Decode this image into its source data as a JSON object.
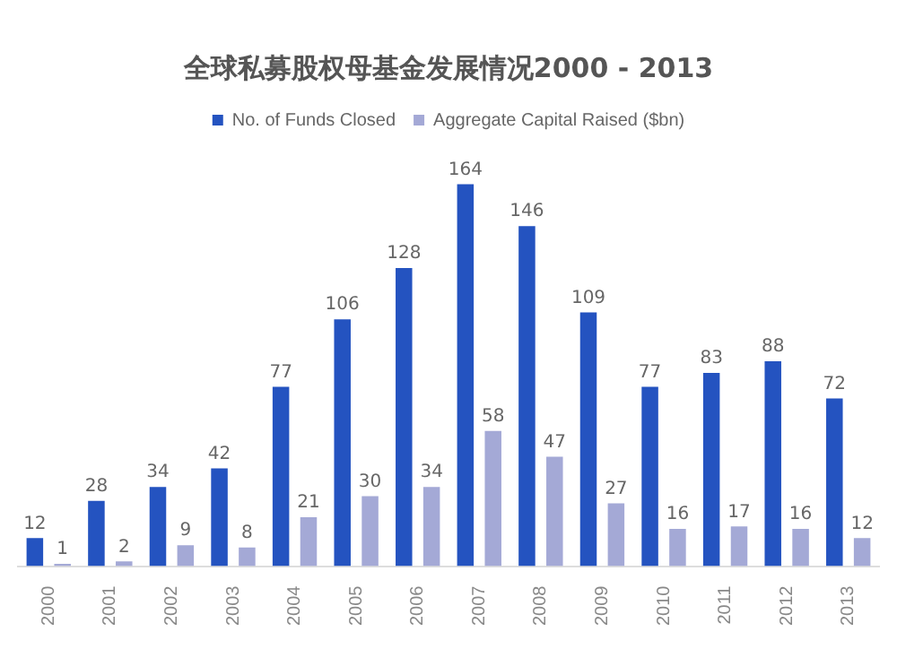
{
  "chart_data": {
    "type": "bar",
    "title": "全球私募股权母基金发展情况2000 - 2013",
    "categories": [
      "2000",
      "2001",
      "2002",
      "2003",
      "2004",
      "2005",
      "2006",
      "2007",
      "2008",
      "2009",
      "2010",
      "2011",
      "2012",
      "2013"
    ],
    "series": [
      {
        "name": "No. of Funds Closed",
        "color": "#2453c0",
        "values": [
          12,
          28,
          34,
          42,
          77,
          106,
          128,
          164,
          146,
          109,
          77,
          83,
          88,
          72
        ]
      },
      {
        "name": "Aggregate Capital Raised ($bn)",
        "color": "#a4a9d6",
        "values": [
          1,
          2,
          9,
          8,
          21,
          30,
          34,
          58,
          47,
          27,
          16,
          17,
          16,
          12
        ]
      }
    ],
    "data_labels": true,
    "legend": "top",
    "grid": false
  }
}
